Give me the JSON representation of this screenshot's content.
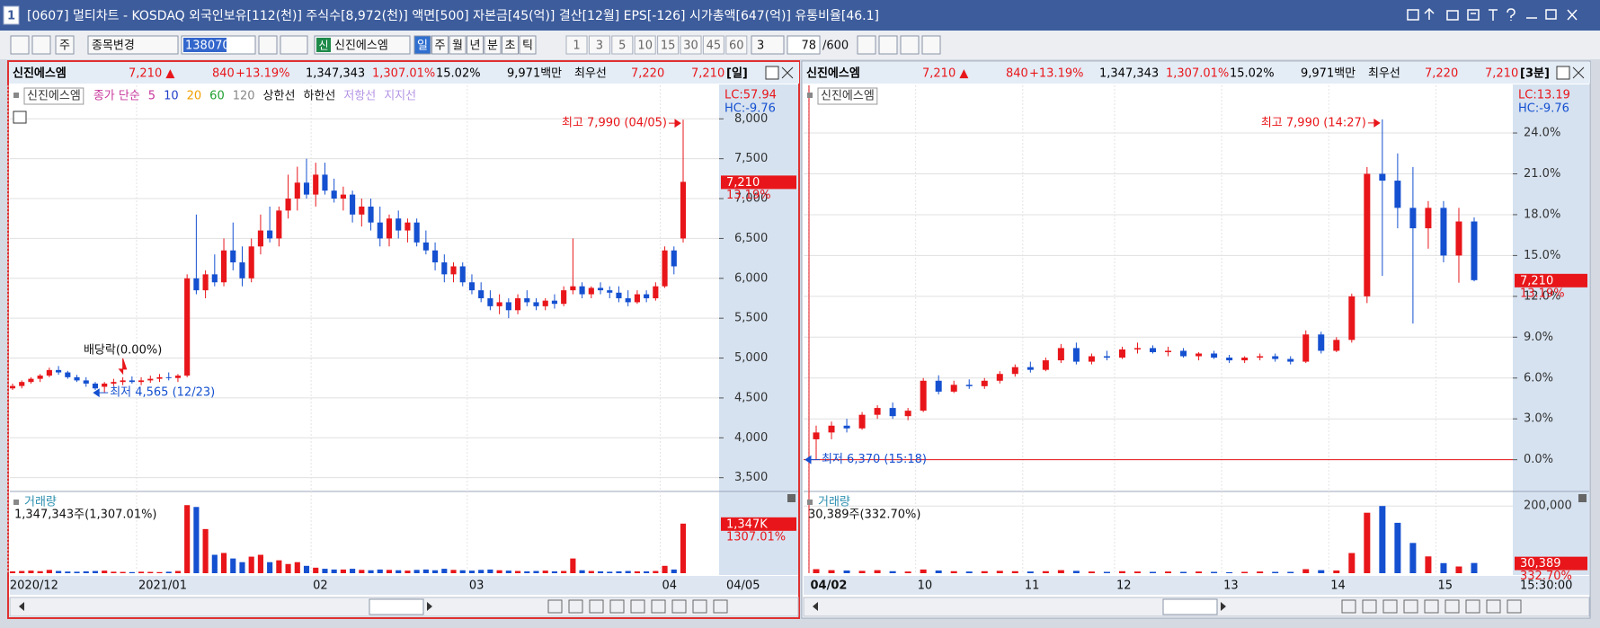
{
  "window": {
    "number": "1",
    "title": "[0607] 멀티차트 - KOSDAQ 외국인보유[112(천)] 주식수[8,972(천)] 액면[500] 자본금[45(억)] 결산[12월] EPS[-126] 시가총액[647(억)] 유통비율[46.1]"
  },
  "toolbar": {
    "market": "주",
    "search": "종목변경",
    "code": "138070",
    "stock_badge": "신",
    "stock": "신진에스엠",
    "periods": [
      "일",
      "주",
      "월",
      "년",
      "분",
      "초",
      "틱"
    ],
    "intervals": [
      "1",
      "3",
      "5",
      "10",
      "15",
      "30",
      "45",
      "60"
    ],
    "unit": "3",
    "count": "78",
    "count_max": "/600"
  },
  "charts": [
    {
      "type": "candlestick",
      "info": {
        "name": "신진에스엠",
        "price": "7,210 ▲",
        "change": "840",
        "rate": "+13.19%",
        "volume": "1,347,343",
        "volume_rate": "1,307.01%",
        "turnover": "15.02%",
        "amount": "9,971백만",
        "best_label": "최우선",
        "ask": "7,220",
        "bid": "7,210",
        "period": "[일]"
      },
      "legend": [
        {
          "text": "신진에스엠",
          "color": "#333333"
        },
        {
          "text": "종가 단순",
          "color": "#c8389c"
        },
        {
          "text": "5",
          "color": "#c8389c"
        },
        {
          "text": "10",
          "color": "#2040c8"
        },
        {
          "text": "20",
          "color": "#f0a000"
        },
        {
          "text": "60",
          "color": "#20a030"
        },
        {
          "text": "120",
          "color": "#888888"
        },
        {
          "text": "상한선",
          "color": "#111111"
        },
        {
          "text": "하한선",
          "color": "#111111"
        },
        {
          "text": "저항선",
          "color": "#b494e4"
        },
        {
          "text": "지지선",
          "color": "#b494e4"
        }
      ],
      "annotations": {
        "high": "최고 7,990 (04/05)",
        "low": "최저 4,565 (12/23)",
        "ex_dividend": "배당락(0.00%)"
      },
      "lc": "LC:57.94",
      "hc": "HC:-9.76",
      "price_tag": "7,210",
      "rate_tag": "13.19%",
      "ylim": [
        3350,
        8420
      ],
      "yticks": [
        {
          "value": 3500,
          "label": "3,500"
        },
        {
          "value": 4000,
          "label": "4,000"
        },
        {
          "value": 4500,
          "label": "4,500"
        },
        {
          "value": 5000,
          "label": "5,000"
        },
        {
          "value": 5500,
          "label": "5,500"
        },
        {
          "value": 6000,
          "label": "6,000"
        },
        {
          "value": 6500,
          "label": "6,500"
        },
        {
          "value": 7000,
          "label": "7,000"
        },
        {
          "value": 7500,
          "label": "7,500"
        },
        {
          "value": 8000,
          "label": "8,000"
        }
      ],
      "categories": [
        "2020/12",
        null,
        null,
        null,
        null,
        null,
        null,
        null,
        null,
        null,
        null,
        null,
        null,
        null,
        "2021/01",
        null,
        null,
        null,
        null,
        null,
        null,
        null,
        null,
        null,
        null,
        null,
        null,
        null,
        null,
        null,
        null,
        null,
        null,
        "02",
        null,
        null,
        null,
        null,
        null,
        null,
        null,
        null,
        null,
        null,
        null,
        null,
        null,
        null,
        null,
        null,
        "03",
        null,
        null,
        null,
        null,
        null,
        null,
        null,
        null,
        null,
        null,
        null,
        null,
        null,
        null,
        null,
        null,
        null,
        null,
        null,
        null,
        "04",
        null,
        null
      ],
      "current_date": "04/05",
      "candles": [
        [
          4620,
          4680,
          4600,
          4650
        ],
        [
          4650,
          4720,
          4620,
          4700
        ],
        [
          4700,
          4760,
          4680,
          4740
        ],
        [
          4740,
          4800,
          4700,
          4780
        ],
        [
          4780,
          4880,
          4760,
          4850
        ],
        [
          4850,
          4900,
          4790,
          4820
        ],
        [
          4820,
          4840,
          4740,
          4760
        ],
        [
          4760,
          4790,
          4700,
          4720
        ],
        [
          4720,
          4760,
          4640,
          4680
        ],
        [
          4680,
          4700,
          4600,
          4620
        ],
        [
          4640,
          4700,
          4565,
          4680
        ],
        [
          4680,
          4740,
          4650,
          4700
        ],
        [
          4700,
          4760,
          4660,
          4720
        ],
        [
          4720,
          4770,
          4680,
          4700
        ],
        [
          4700,
          4760,
          4660,
          4720
        ],
        [
          4720,
          4780,
          4690,
          4740
        ],
        [
          4740,
          4800,
          4700,
          4760
        ],
        [
          4760,
          4820,
          4720,
          4750
        ],
        [
          4750,
          4800,
          4700,
          4780
        ],
        [
          4780,
          6050,
          4760,
          6000
        ],
        [
          6000,
          6800,
          5800,
          5850
        ],
        [
          5850,
          6100,
          5750,
          6050
        ],
        [
          6050,
          6300,
          5900,
          5950
        ],
        [
          5950,
          6500,
          5900,
          6350
        ],
        [
          6350,
          6700,
          6100,
          6200
        ],
        [
          6200,
          6400,
          5900,
          6000
        ],
        [
          6000,
          6500,
          5950,
          6400
        ],
        [
          6400,
          6800,
          6300,
          6600
        ],
        [
          6600,
          6900,
          6450,
          6500
        ],
        [
          6500,
          6900,
          6400,
          6850
        ],
        [
          6850,
          7300,
          6750,
          7000
        ],
        [
          7000,
          7400,
          6850,
          7200
        ],
        [
          7200,
          7500,
          7000,
          7050
        ],
        [
          7050,
          7450,
          6900,
          7300
        ],
        [
          7300,
          7450,
          7050,
          7100
        ],
        [
          7100,
          7250,
          6950,
          7000
        ],
        [
          7000,
          7150,
          6850,
          7050
        ],
        [
          7050,
          7100,
          6700,
          6800
        ],
        [
          6800,
          7000,
          6650,
          6900
        ],
        [
          6900,
          7000,
          6600,
          6700
        ],
        [
          6700,
          6900,
          6400,
          6500
        ],
        [
          6500,
          6800,
          6400,
          6750
        ],
        [
          6750,
          6850,
          6500,
          6600
        ],
        [
          6600,
          6750,
          6450,
          6700
        ],
        [
          6700,
          6750,
          6400,
          6450
        ],
        [
          6450,
          6600,
          6300,
          6350
        ],
        [
          6350,
          6450,
          6100,
          6200
        ],
        [
          6200,
          6300,
          5950,
          6050
        ],
        [
          6050,
          6200,
          5950,
          6150
        ],
        [
          6150,
          6200,
          5900,
          5950
        ],
        [
          5950,
          6050,
          5800,
          5850
        ],
        [
          5850,
          5950,
          5700,
          5750
        ],
        [
          5750,
          5850,
          5600,
          5650
        ],
        [
          5650,
          5800,
          5550,
          5700
        ],
        [
          5700,
          5750,
          5500,
          5600
        ],
        [
          5600,
          5800,
          5550,
          5750
        ],
        [
          5750,
          5850,
          5650,
          5700
        ],
        [
          5700,
          5750,
          5600,
          5650
        ],
        [
          5650,
          5750,
          5600,
          5720
        ],
        [
          5720,
          5800,
          5620,
          5680
        ],
        [
          5680,
          5900,
          5650,
          5850
        ],
        [
          5850,
          6500,
          5800,
          5900
        ],
        [
          5900,
          5950,
          5750,
          5800
        ],
        [
          5800,
          5900,
          5750,
          5880
        ],
        [
          5880,
          5950,
          5800,
          5850
        ],
        [
          5850,
          5900,
          5750,
          5820
        ],
        [
          5820,
          5900,
          5700,
          5750
        ],
        [
          5750,
          5850,
          5650,
          5700
        ],
        [
          5700,
          5850,
          5680,
          5800
        ],
        [
          5800,
          5850,
          5700,
          5750
        ],
        [
          5750,
          5950,
          5720,
          5900
        ],
        [
          5900,
          6400,
          5880,
          6350
        ],
        [
          6350,
          6400,
          6050,
          6150
        ],
        [
          6500,
          7990,
          6450,
          7210
        ]
      ],
      "volume": {
        "title": "거래량",
        "summary": "1,347,343주(1,307.01%)",
        "tag": "1,347K",
        "tag_rate": "1307.01%",
        "ylim": [
          0,
          2100000
        ],
        "yticks": [],
        "values": [
          50000,
          60000,
          70000,
          55000,
          90000,
          60000,
          45000,
          40000,
          50000,
          60000,
          70000,
          40000,
          35000,
          30000,
          40000,
          35000,
          30000,
          40000,
          60000,
          1850000,
          1800000,
          1200000,
          500000,
          550000,
          400000,
          300000,
          450000,
          500000,
          300000,
          350000,
          250000,
          300000,
          200000,
          150000,
          120000,
          100000,
          100000,
          120000,
          90000,
          80000,
          100000,
          90000,
          80000,
          70000,
          90000,
          100000,
          80000,
          120000,
          90000,
          80000,
          70000,
          90000,
          100000,
          80000,
          70000,
          60000,
          50000,
          60000,
          70000,
          50000,
          60000,
          400000,
          80000,
          60000,
          50000,
          40000,
          50000,
          60000,
          50000,
          50000,
          60000,
          200000,
          100000,
          1347343
        ]
      }
    },
    {
      "type": "candlestick",
      "info": {
        "name": "신진에스엠",
        "price": "7,210 ▲",
        "change": "840",
        "rate": "+13.19%",
        "volume": "1,347,343",
        "volume_rate": "1,307.01%",
        "turnover": "15.02%",
        "amount": "9,971백만",
        "best_label": "최우선",
        "ask": "7,220",
        "bid": "7,210",
        "period": "[3분]"
      },
      "legend": [
        {
          "text": "신진에스엠",
          "color": "#333333"
        }
      ],
      "annotations": {
        "high": "최고 7,990 (14:27)",
        "low": "최저 6,370 (15:18)"
      },
      "lc": "LC:13.19",
      "hc": "HC:-9.76",
      "price_tag": "7,210",
      "rate_tag": "13.19%",
      "ylim": [
        -2.2,
        27.5
      ],
      "yticks": [
        {
          "value": 0,
          "label": "0.0%"
        },
        {
          "value": 3,
          "label": "3.0%"
        },
        {
          "value": 6,
          "label": "6.0%"
        },
        {
          "value": 9,
          "label": "9.0%"
        },
        {
          "value": 12,
          "label": "12.0%"
        },
        {
          "value": 15,
          "label": "15.0%"
        },
        {
          "value": 18,
          "label": "18.0%"
        },
        {
          "value": 21,
          "label": "21.0%"
        },
        {
          "value": 24,
          "label": "24.0%"
        }
      ],
      "categories": [
        "04/02",
        null,
        null,
        null,
        null,
        null,
        null,
        "10",
        null,
        null,
        null,
        null,
        null,
        null,
        "11",
        null,
        null,
        null,
        null,
        null,
        "12",
        null,
        null,
        null,
        null,
        null,
        null,
        "13",
        null,
        null,
        null,
        null,
        null,
        null,
        "14",
        null,
        null,
        null,
        null,
        null,
        null,
        "15",
        null,
        null
      ],
      "current_date": "15:30:00",
      "candles": [
        [
          1.5,
          2.5,
          0.0,
          2.0
        ],
        [
          2.0,
          2.8,
          1.5,
          2.5
        ],
        [
          2.5,
          3.0,
          2.0,
          2.3
        ],
        [
          2.3,
          3.5,
          2.2,
          3.3
        ],
        [
          3.3,
          4.0,
          3.0,
          3.8
        ],
        [
          3.8,
          4.2,
          3.0,
          3.2
        ],
        [
          3.2,
          3.8,
          2.9,
          3.6
        ],
        [
          3.6,
          6.0,
          3.5,
          5.8
        ],
        [
          5.8,
          6.2,
          4.8,
          5.0
        ],
        [
          5.0,
          5.8,
          4.9,
          5.5
        ],
        [
          5.5,
          5.9,
          5.2,
          5.4
        ],
        [
          5.4,
          6.0,
          5.2,
          5.8
        ],
        [
          5.8,
          6.5,
          5.6,
          6.3
        ],
        [
          6.3,
          7.0,
          6.1,
          6.8
        ],
        [
          6.8,
          7.2,
          6.4,
          6.6
        ],
        [
          6.6,
          7.5,
          6.5,
          7.3
        ],
        [
          7.3,
          8.5,
          7.1,
          8.2
        ],
        [
          8.2,
          8.6,
          7.0,
          7.2
        ],
        [
          7.2,
          7.8,
          7.0,
          7.6
        ],
        [
          7.6,
          8.0,
          7.3,
          7.5
        ],
        [
          7.5,
          8.3,
          7.4,
          8.1
        ],
        [
          8.1,
          8.6,
          7.8,
          8.2
        ],
        [
          8.2,
          8.4,
          7.8,
          7.9
        ],
        [
          7.9,
          8.3,
          7.6,
          8.0
        ],
        [
          8.0,
          8.2,
          7.5,
          7.6
        ],
        [
          7.6,
          7.9,
          7.3,
          7.8
        ],
        [
          7.8,
          8.0,
          7.4,
          7.5
        ],
        [
          7.5,
          7.7,
          7.1,
          7.3
        ],
        [
          7.3,
          7.6,
          7.1,
          7.5
        ],
        [
          7.5,
          7.8,
          7.3,
          7.6
        ],
        [
          7.6,
          7.8,
          7.2,
          7.4
        ],
        [
          7.4,
          7.6,
          7.0,
          7.2
        ],
        [
          7.2,
          9.5,
          7.1,
          9.2
        ],
        [
          9.2,
          9.4,
          7.8,
          8.0
        ],
        [
          8.0,
          9.0,
          7.9,
          8.8
        ],
        [
          8.8,
          12.2,
          8.6,
          12.0
        ],
        [
          12.0,
          21.5,
          11.5,
          21.0
        ],
        [
          21.0,
          25.0,
          13.5,
          20.5
        ],
        [
          20.5,
          22.5,
          17.0,
          18.5
        ],
        [
          18.5,
          21.5,
          10.0,
          17.0
        ],
        [
          17.0,
          19.0,
          15.5,
          18.5
        ],
        [
          18.5,
          19.0,
          14.5,
          15.0
        ],
        [
          15.0,
          18.5,
          13.0,
          17.5
        ],
        [
          17.5,
          17.8,
          13.1,
          13.19
        ]
      ],
      "volume": {
        "title": "거래량",
        "summary": "30,389주(332.70%)",
        "tag": "30,389",
        "tag_rate": "332.70%",
        "ylim": [
          0,
          230000
        ],
        "yticks": [
          {
            "value": 200000,
            "label": "200,000"
          }
        ],
        "values": [
          12000,
          9000,
          8000,
          7000,
          9000,
          6000,
          5000,
          11000,
          8000,
          6000,
          5000,
          6000,
          7000,
          6000,
          5000,
          6000,
          9000,
          7000,
          5000,
          4000,
          6000,
          5000,
          4000,
          5000,
          4000,
          5000,
          4000,
          3000,
          4000,
          5000,
          4000,
          4000,
          12000,
          9000,
          8000,
          60000,
          180000,
          200000,
          150000,
          90000,
          50000,
          30000,
          20000,
          30389
        ]
      }
    }
  ]
}
